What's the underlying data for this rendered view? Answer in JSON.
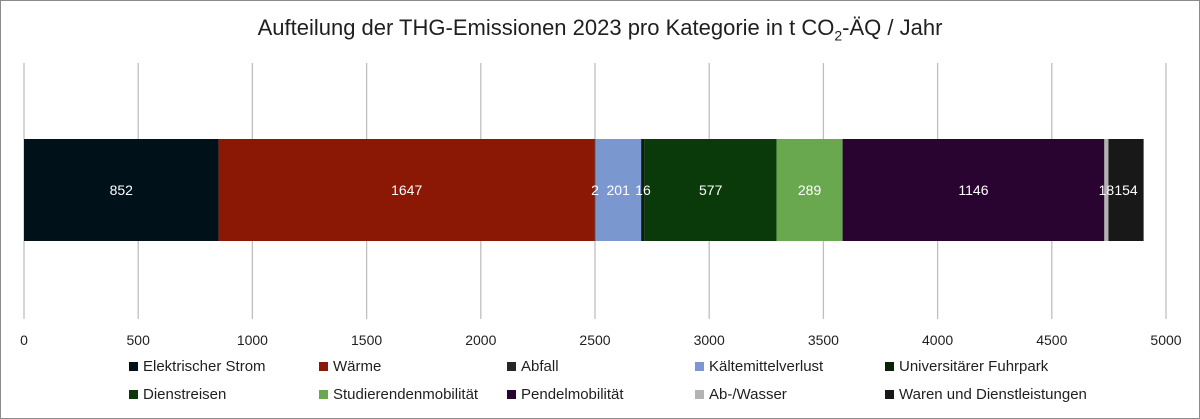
{
  "chart_data": {
    "type": "bar",
    "orientation": "horizontal",
    "stacked": true,
    "title_main": "Aufteilung der THG-Emissionen 2023 pro Kategorie in t CO",
    "title_sub": "2",
    "title_tail": "-ÄQ / Jahr",
    "xlim": [
      0,
      5000
    ],
    "ticks": [
      "0",
      "500",
      "1000",
      "1500",
      "2000",
      "2500",
      "3000",
      "3500",
      "4000",
      "4500",
      "5000"
    ],
    "grid": true,
    "legend_position": "bottom",
    "series": [
      {
        "name": "Elektrischer Strom",
        "value": 852,
        "label": "852",
        "color": "#00111a"
      },
      {
        "name": "Wärme",
        "value": 1647,
        "label": "1647",
        "color": "#8b1805"
      },
      {
        "name": "Abfall",
        "value": 2,
        "label": "2",
        "color": "#262626"
      },
      {
        "name": "Kältemittelverlust",
        "value": 201,
        "label": "201",
        "color": "#7b97cf"
      },
      {
        "name": "Universitärer Fuhrpark",
        "value": 16,
        "label": "16",
        "color": "#082108"
      },
      {
        "name": "Dienstreisen",
        "value": 577,
        "label": "577",
        "color": "#0a3a0a"
      },
      {
        "name": "Studierendenmobilität",
        "value": 289,
        "label": "289",
        "color": "#6aa84f"
      },
      {
        "name": "Pendelmobilität",
        "value": 1146,
        "label": "1146",
        "color": "#2a0430"
      },
      {
        "name": "Ab-/Wasser",
        "value": 18,
        "label": "18",
        "color": "#b3b3b3"
      },
      {
        "name": "Waren und Dienstleistungen",
        "value": 154,
        "label": "154",
        "color": "#181818"
      }
    ]
  }
}
